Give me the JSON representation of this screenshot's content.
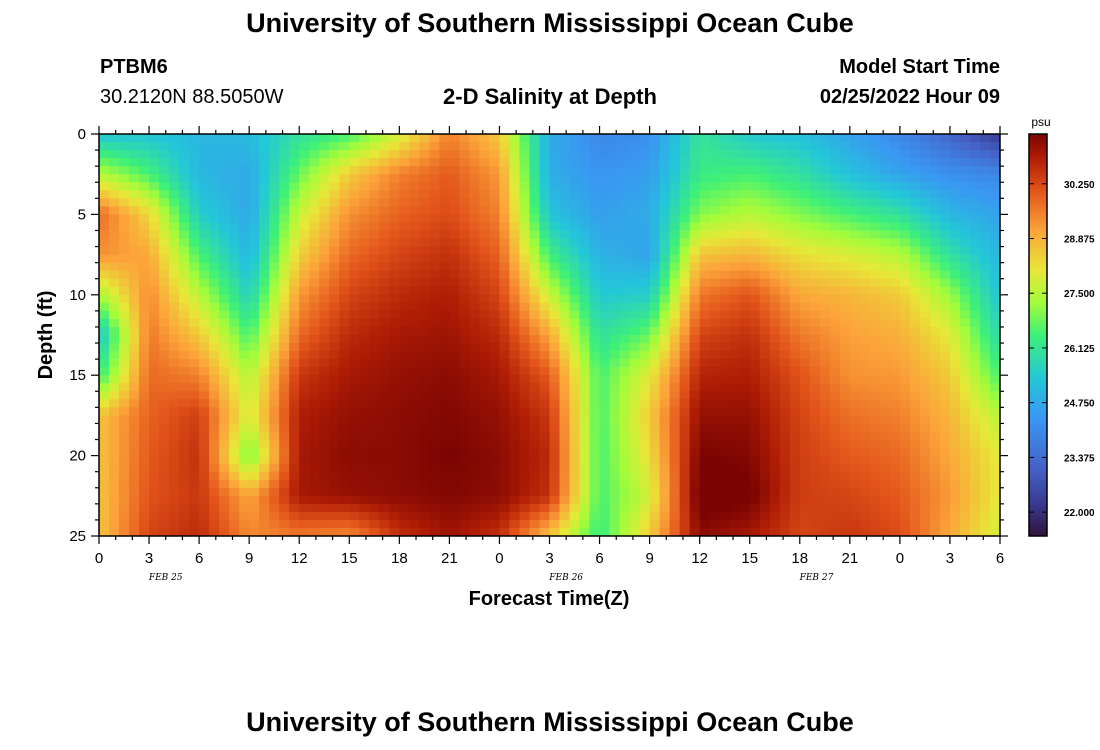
{
  "header": {
    "title": "University of Southern Mississippi Ocean Cube",
    "station_id": "PTBM6",
    "station_coords": "30.2120N  88.5050W",
    "plot_title": "2-D Salinity at Depth",
    "model_start_label": "Model Start Time",
    "model_start_value": "02/25/2022 Hour 09"
  },
  "footer": {
    "title": "University of Southern Mississippi Ocean Cube"
  },
  "chart_data": {
    "type": "heatmap",
    "title": "2-D Salinity at Depth",
    "xlabel": "Forecast Time(Z)",
    "ylabel": "Depth (ft)",
    "x_tick_labels": [
      "0",
      "3",
      "6",
      "9",
      "12",
      "15",
      "18",
      "21",
      "0",
      "3",
      "6",
      "9",
      "12",
      "15",
      "18",
      "21",
      "0",
      "3",
      "6"
    ],
    "x_range_hours": [
      0,
      54
    ],
    "date_labels": [
      {
        "label": "FEB 25",
        "hour": 4
      },
      {
        "label": "FEB 26",
        "hour": 28
      },
      {
        "label": "FEB 27",
        "hour": 43
      }
    ],
    "y_ticks": [
      0,
      5,
      10,
      15,
      20,
      25
    ],
    "y_range": [
      0,
      25
    ],
    "y_inverted": true,
    "colorbar": {
      "unit": "psu",
      "ticks": [
        "30.250",
        "28.875",
        "27.500",
        "26.125",
        "24.750",
        "23.375",
        "22.000"
      ],
      "tick_values": [
        30.25,
        28.875,
        27.5,
        26.125,
        24.75,
        23.375,
        22.0
      ],
      "min": 21.4,
      "max": 31.5
    },
    "time_hours": [
      0,
      3,
      6,
      9,
      12,
      15,
      18,
      21,
      24,
      27,
      30,
      33,
      36,
      39,
      42,
      45,
      48,
      51,
      54
    ],
    "depths_ft": [
      0,
      2.5,
      5,
      7.5,
      10,
      12.5,
      15,
      17.5,
      20,
      22.5,
      25
    ],
    "salinity_psu": [
      [
        25.3,
        27.5,
        29.8,
        29.3,
        27.3,
        25.3,
        26.3,
        28.6,
        28.6,
        28.6,
        28.6
      ],
      [
        25.3,
        26.5,
        28.3,
        29.0,
        29.4,
        29.6,
        29.8,
        29.9,
        30.0,
        30.1,
        30.3
      ],
      [
        25.0,
        25.0,
        25.5,
        26.5,
        27.5,
        28.5,
        29.5,
        30.4,
        30.6,
        30.5,
        30.7
      ],
      [
        25.1,
        24.7,
        24.7,
        25.0,
        25.6,
        26.5,
        27.4,
        27.8,
        26.8,
        29.0,
        29.4
      ],
      [
        26.0,
        26.8,
        27.7,
        28.4,
        29.2,
        29.8,
        30.5,
        30.9,
        31.0,
        31.0,
        29.6
      ],
      [
        26.5,
        28.5,
        29.3,
        29.8,
        30.3,
        30.7,
        31.0,
        31.2,
        31.3,
        31.2,
        29.4
      ],
      [
        27.8,
        29.5,
        29.9,
        30.3,
        30.7,
        31.0,
        31.2,
        31.3,
        31.3,
        31.3,
        30.6
      ],
      [
        29.5,
        30.0,
        30.2,
        30.6,
        30.9,
        31.1,
        31.3,
        31.4,
        31.5,
        31.4,
        31.1
      ],
      [
        28.5,
        29.2,
        29.5,
        29.9,
        30.3,
        30.7,
        31.0,
        31.2,
        31.3,
        31.3,
        30.6
      ],
      [
        24.8,
        24.8,
        25.3,
        26.4,
        27.7,
        29.0,
        30.0,
        30.5,
        30.7,
        30.6,
        28.6
      ],
      [
        24.0,
        24.3,
        24.5,
        24.9,
        25.4,
        26.0,
        26.5,
        26.5,
        26.5,
        26.5,
        26.3
      ],
      [
        24.2,
        24.5,
        24.8,
        24.6,
        25.5,
        26.8,
        28.0,
        28.5,
        28.2,
        27.8,
        28.5
      ],
      [
        26.1,
        26.3,
        27.0,
        28.6,
        29.6,
        30.3,
        30.8,
        31.2,
        31.5,
        31.7,
        31.3
      ],
      [
        25.4,
        26.5,
        27.5,
        28.8,
        30.1,
        30.6,
        30.9,
        31.2,
        31.4,
        31.6,
        31.0
      ],
      [
        25.2,
        26.0,
        27.0,
        28.2,
        29.0,
        29.6,
        30.1,
        30.3,
        30.4,
        30.4,
        30.3
      ],
      [
        24.6,
        25.2,
        26.5,
        27.9,
        28.8,
        29.1,
        29.3,
        29.7,
        30.0,
        30.3,
        30.5
      ],
      [
        24.0,
        24.6,
        26.0,
        27.5,
        28.5,
        28.9,
        29.2,
        29.5,
        29.8,
        30.0,
        30.2
      ],
      [
        23.2,
        24.2,
        25.0,
        26.0,
        27.2,
        28.0,
        28.5,
        28.8,
        29.0,
        29.2,
        29.0
      ],
      [
        22.2,
        24.0,
        24.6,
        25.0,
        25.3,
        25.8,
        26.5,
        27.5,
        28.0,
        28.0,
        27.8
      ]
    ]
  }
}
